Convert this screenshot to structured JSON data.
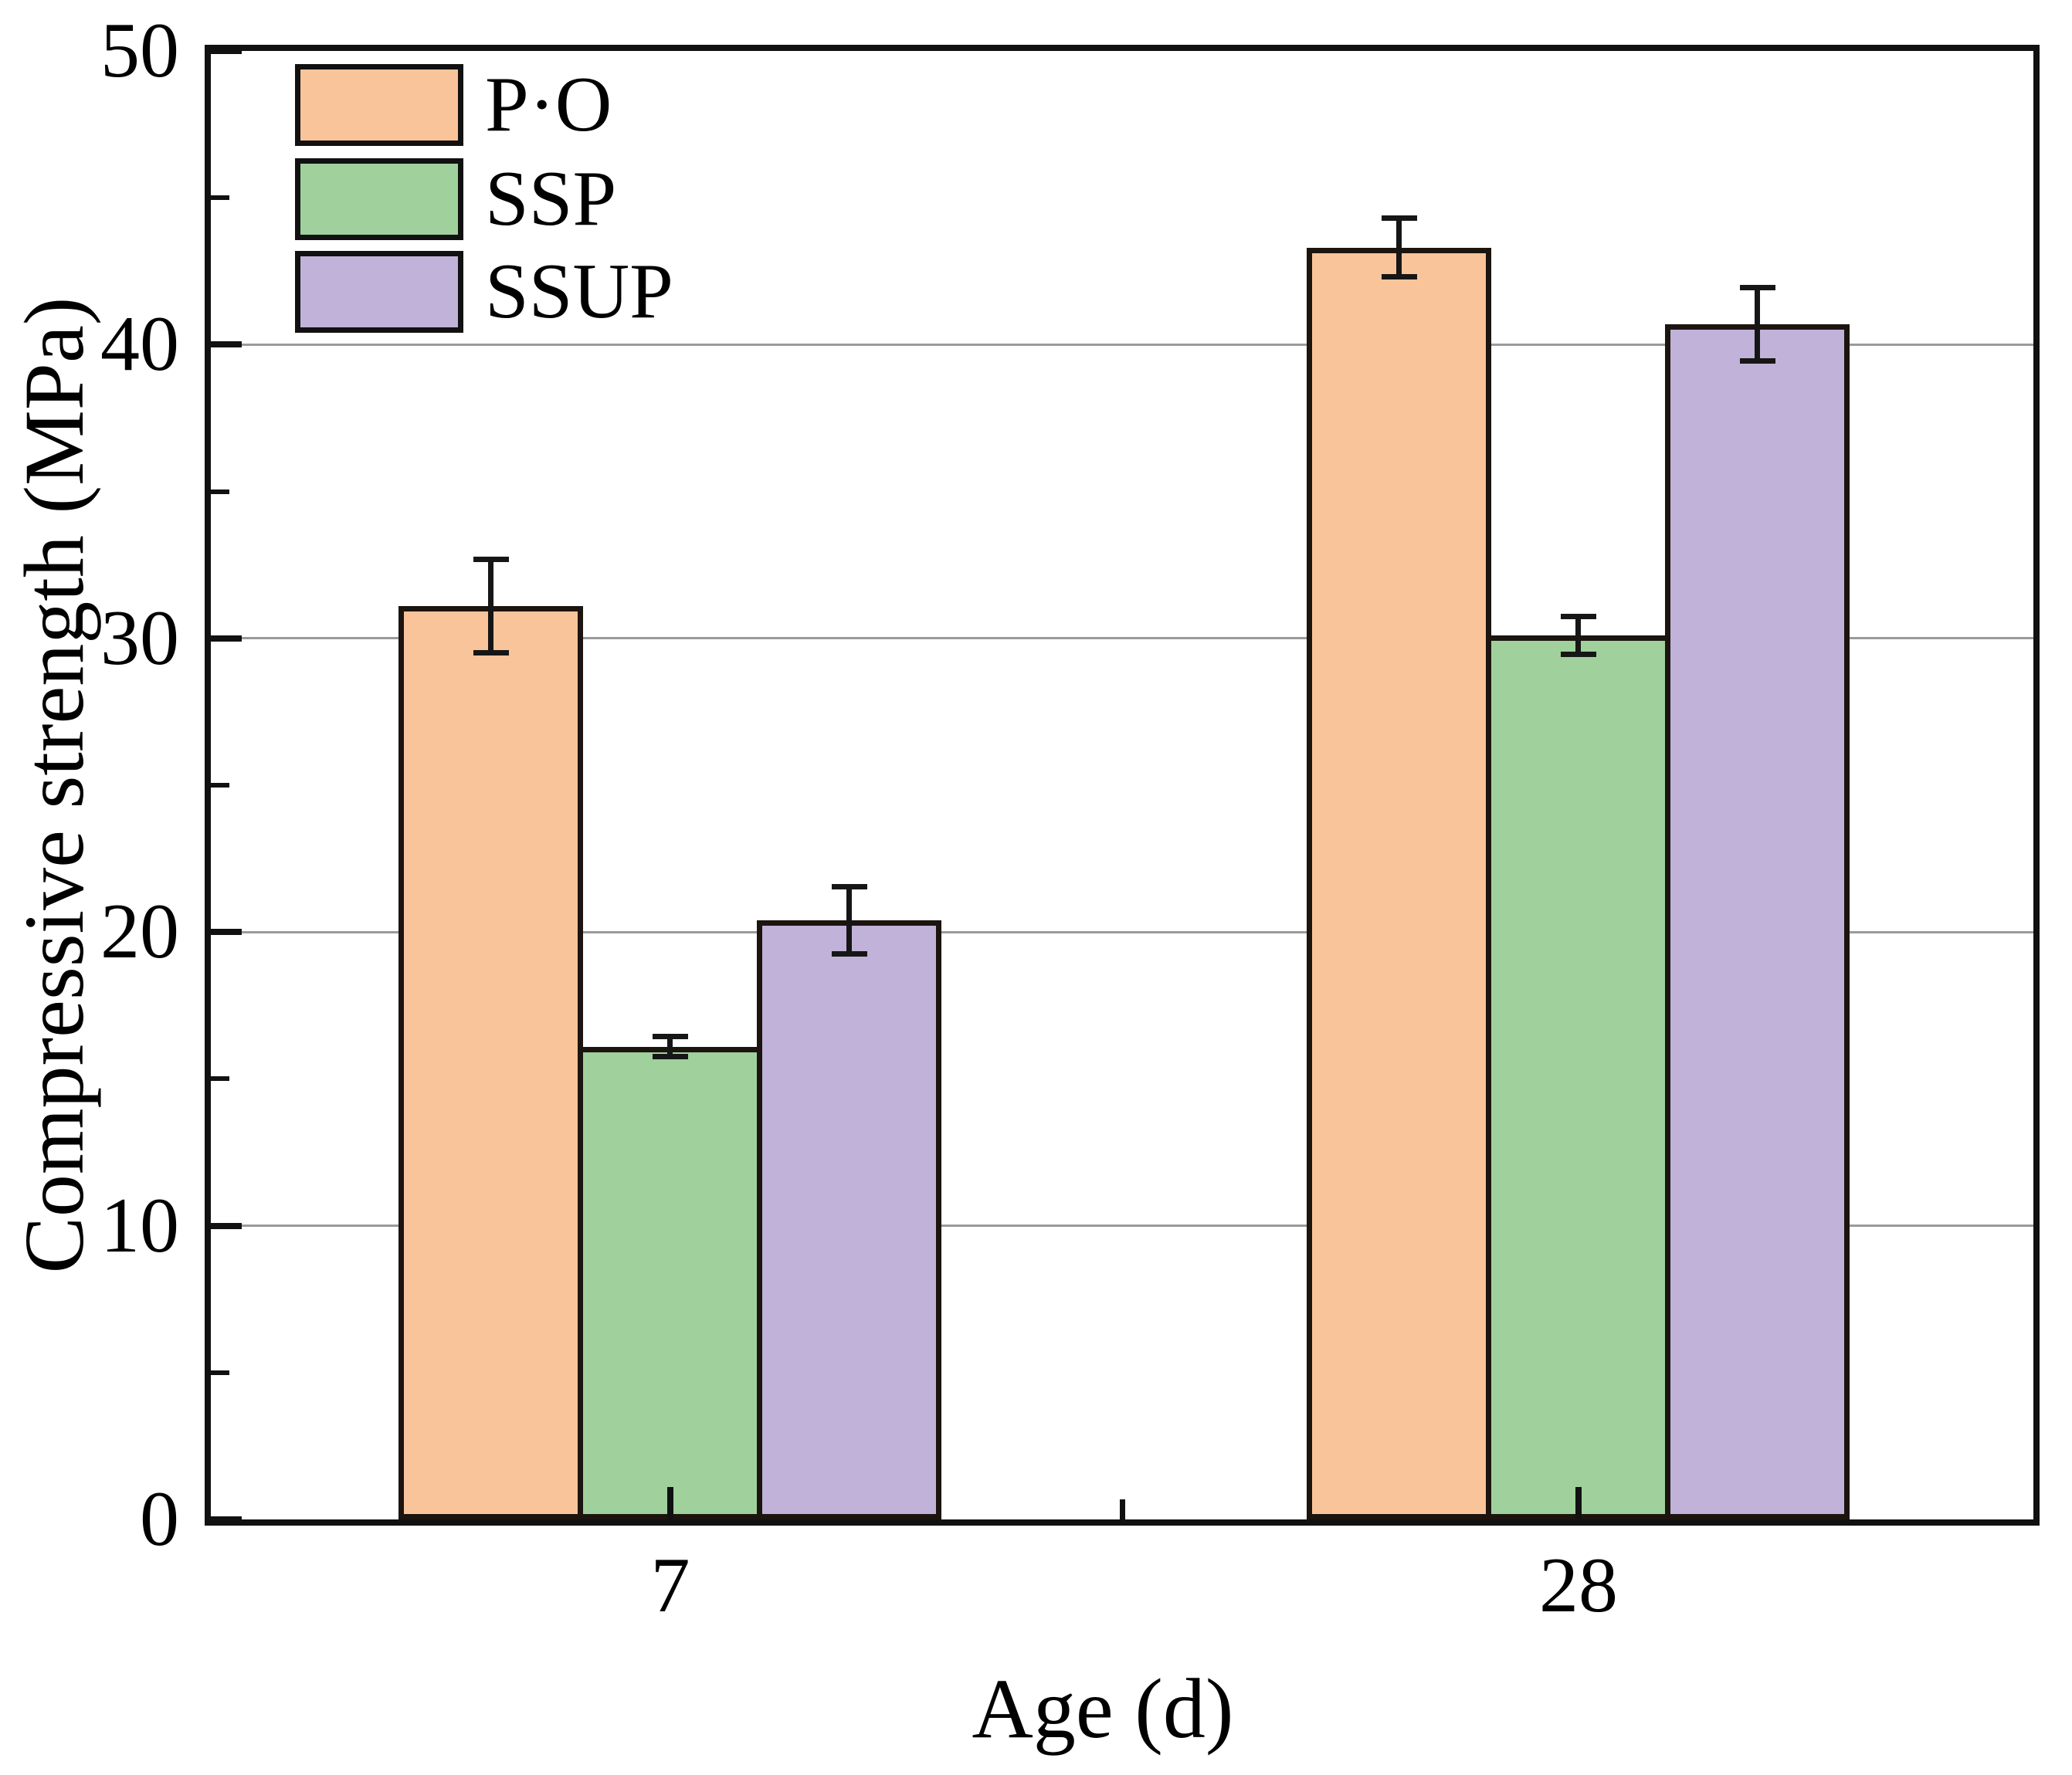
{
  "chart_data": {
    "type": "bar",
    "title": "",
    "xlabel": "Age (d)",
    "ylabel": "Compressive strength (MPa)",
    "categories": [
      "7",
      "28"
    ],
    "series": [
      {
        "name": "P·O",
        "color": "#fac49a",
        "values": [
          31.1,
          43.3
        ],
        "errors": [
          1.6,
          1.0
        ]
      },
      {
        "name": "SSP",
        "color": "#a0d19c",
        "values": [
          16.1,
          30.1
        ],
        "errors": [
          0.35,
          0.65
        ]
      },
      {
        "name": "SSUP",
        "color": "#c0b2d8",
        "values": [
          20.4,
          40.7
        ],
        "errors": [
          1.15,
          1.25
        ]
      }
    ],
    "ylim": [
      0,
      50
    ],
    "yticks_major": [
      0,
      10,
      20,
      30,
      40,
      50
    ],
    "yticks_minor": [
      5,
      15,
      25,
      35,
      45
    ],
    "gridlines_at": [
      10,
      20,
      30,
      40
    ],
    "grid_on": true,
    "grid_color": "#9a9a9a",
    "axis_color": "#111111",
    "bar_edge_color": "#1c140e",
    "error_bar_color": "#161616",
    "legend_position": "top-left",
    "background_color": "#ffffff"
  }
}
